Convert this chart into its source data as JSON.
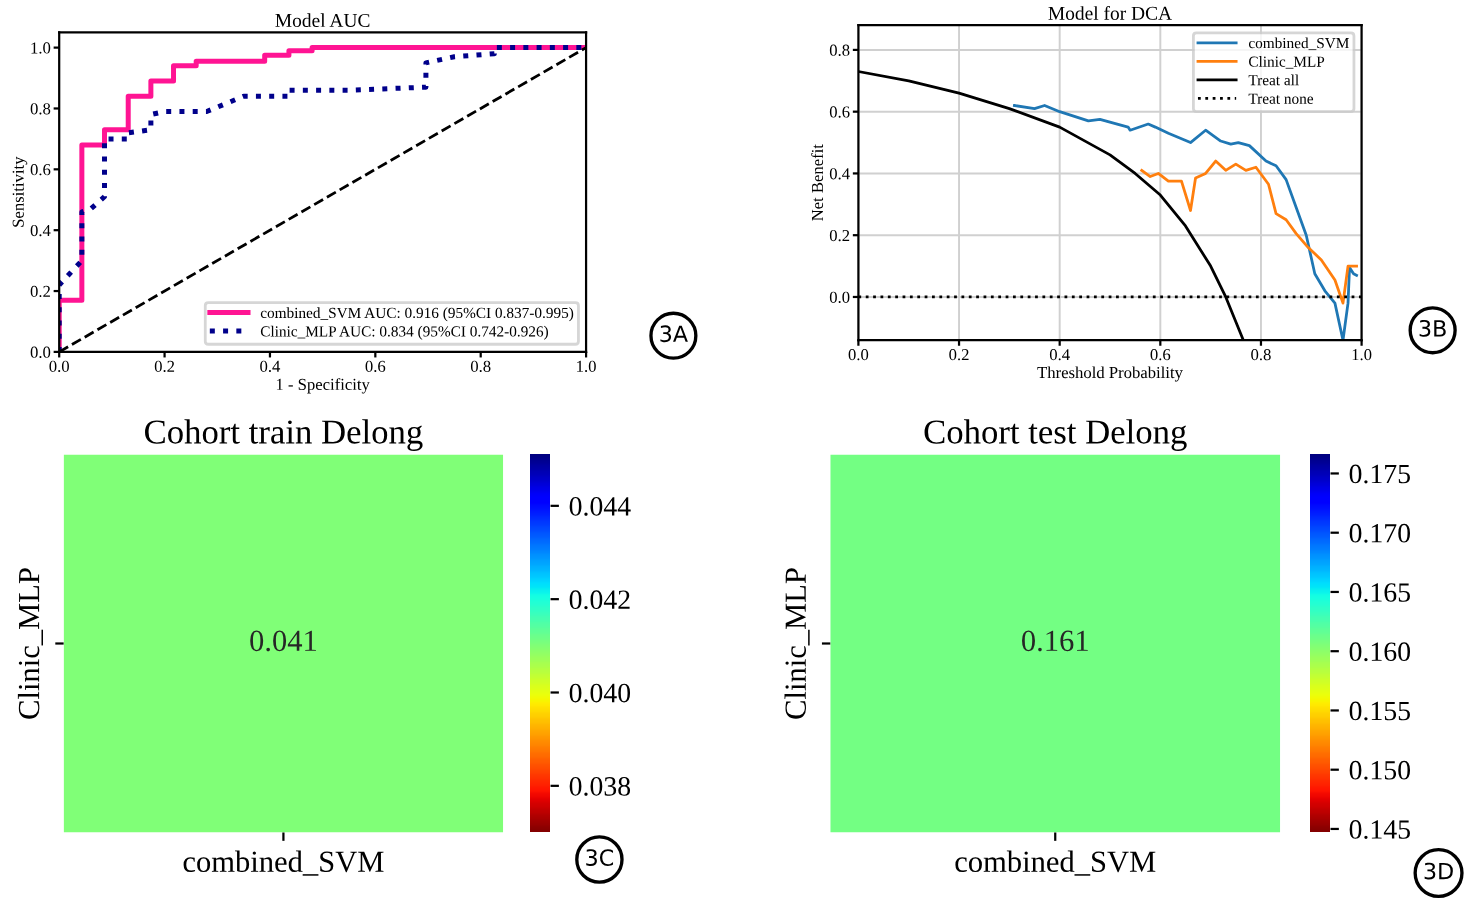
{
  "chart_data": [
    {
      "type": "line",
      "title": "Model AUC",
      "xlabel": "1 - Specificity",
      "ylabel": "Sensitivity",
      "xlim": [
        0,
        1
      ],
      "ylim": [
        0,
        1.05
      ],
      "xticks": [
        {
          "value": 0,
          "label": "0.0"
        },
        {
          "value": 0.2,
          "label": "0.2"
        },
        {
          "value": 0.4,
          "label": "0.4"
        },
        {
          "value": 0.6,
          "label": "0.6"
        },
        {
          "value": 0.8,
          "label": "0.8"
        },
        {
          "value": 1,
          "label": "1.0"
        }
      ],
      "yticks": [
        {
          "value": 0,
          "label": "0.0"
        },
        {
          "value": 0.2,
          "label": "0.2"
        },
        {
          "value": 0.4,
          "label": "0.4"
        },
        {
          "value": 0.6,
          "label": "0.6"
        },
        {
          "value": 0.8,
          "label": "0.8"
        },
        {
          "value": 1,
          "label": "1.0"
        }
      ],
      "legend": "bottom right",
      "grid": false,
      "annotations": [
        "3A"
      ],
      "series": [
        {
          "name": "combined_SVM AUC: 0.916 (95%CI 0.837-0.995)",
          "color": "#ff1493",
          "line_style": "solid",
          "x": [
            0,
            0,
            0.043,
            0.043,
            0.086,
            0.086,
            0.131,
            0.131,
            0.174,
            0.174,
            0.217,
            0.217,
            0.26,
            0.26,
            0.39,
            0.39,
            0.436,
            0.436,
            0.48,
            0.48,
            1
          ],
          "values": [
            0,
            0.17,
            0.17,
            0.68,
            0.68,
            0.73,
            0.73,
            0.84,
            0.84,
            0.89,
            0.89,
            0.94,
            0.94,
            0.955,
            0.955,
            0.975,
            0.975,
            0.99,
            0.99,
            1,
            1
          ]
        },
        {
          "name": "Clinic_MLP AUC: 0.834 (95%CI 0.742-0.926)",
          "color": "#00008b",
          "line_style": "dotted",
          "x": [
            0,
            0,
            0.043,
            0.043,
            0.06,
            0.086,
            0.086,
            0.131,
            0.131,
            0.174,
            0.174,
            0.2,
            0.28,
            0.35,
            0.436,
            0.436,
            0.55,
            0.696,
            0.696,
            0.75,
            0.826,
            0.826,
            1
          ],
          "values": [
            0,
            0.22,
            0.3,
            0.46,
            0.47,
            0.51,
            0.7,
            0.7,
            0.72,
            0.73,
            0.78,
            0.79,
            0.79,
            0.84,
            0.84,
            0.86,
            0.86,
            0.87,
            0.95,
            0.97,
            0.98,
            1,
            1
          ]
        },
        {
          "color": "#000000",
          "line_style": "dashed",
          "x": [
            0,
            1
          ],
          "values": [
            0,
            1
          ]
        }
      ]
    },
    {
      "type": "line",
      "title": "Model for DCA",
      "xlabel": "Threshold Probability",
      "ylabel": "Net Benefit",
      "xlim": [
        0,
        1
      ],
      "ylim": [
        -0.14,
        0.88
      ],
      "xticks": [
        {
          "value": 0,
          "label": "0.0"
        },
        {
          "value": 0.2,
          "label": "0.2"
        },
        {
          "value": 0.4,
          "label": "0.4"
        },
        {
          "value": 0.6,
          "label": "0.6"
        },
        {
          "value": 0.8,
          "label": "0.8"
        },
        {
          "value": 1,
          "label": "1.0"
        }
      ],
      "yticks": [
        {
          "value": 0,
          "label": "0.0"
        },
        {
          "value": 0.2,
          "label": "0.2"
        },
        {
          "value": 0.4,
          "label": "0.4"
        },
        {
          "value": 0.6,
          "label": "0.6"
        },
        {
          "value": 0.8,
          "label": "0.8"
        }
      ],
      "legend": "top right",
      "grid": true,
      "annotations": [
        "3B"
      ],
      "series": [
        {
          "name": "combined_SVM",
          "color": "#1f77b4",
          "line_style": "solid",
          "x": [
            0.31,
            0.35,
            0.37,
            0.4,
            0.457,
            0.48,
            0.536,
            0.54,
            0.576,
            0.59,
            0.616,
            0.66,
            0.69,
            0.72,
            0.74,
            0.755,
            0.777,
            0.81,
            0.83,
            0.85,
            0.87,
            0.89,
            0.907,
            0.927,
            0.947,
            0.963,
            0.973,
            0.976,
            0.984,
            0.99
          ],
          "values": [
            0.62,
            0.61,
            0.62,
            0.6,
            0.57,
            0.575,
            0.55,
            0.54,
            0.56,
            0.55,
            0.53,
            0.5,
            0.54,
            0.505,
            0.495,
            0.5,
            0.49,
            0.44,
            0.425,
            0.38,
            0.29,
            0.2,
            0.075,
            0.02,
            -0.02,
            -0.14,
            -0.02,
            0.095,
            0.075,
            0.07
          ]
        },
        {
          "name": "Clinic_MLP",
          "color": "#ff7f0e",
          "line_style": "solid",
          "x": [
            0.563,
            0.58,
            0.596,
            0.616,
            0.642,
            0.66,
            0.67,
            0.69,
            0.71,
            0.73,
            0.75,
            0.77,
            0.79,
            0.815,
            0.83,
            0.85,
            0.87,
            0.894,
            0.92,
            0.947,
            0.963,
            0.973,
            0.99
          ],
          "values": [
            0.41,
            0.39,
            0.4,
            0.375,
            0.375,
            0.28,
            0.385,
            0.4,
            0.44,
            0.41,
            0.43,
            0.41,
            0.42,
            0.365,
            0.27,
            0.25,
            0.205,
            0.16,
            0.12,
            0.055,
            -0.02,
            0.1,
            0.1
          ]
        },
        {
          "name": "Treat all",
          "color": "#000000",
          "line_style": "solid",
          "x": [
            0,
            0.1,
            0.2,
            0.3,
            0.4,
            0.5,
            0.55,
            0.6,
            0.65,
            0.7,
            0.73,
            0.765
          ],
          "values": [
            0.73,
            0.7,
            0.66,
            0.61,
            0.55,
            0.46,
            0.4,
            0.33,
            0.23,
            0.1,
            0,
            -0.14
          ]
        },
        {
          "name": "Treat none",
          "color": "#000000",
          "line_style": "dotted",
          "x": [
            0,
            1
          ],
          "values": [
            0,
            0
          ]
        }
      ]
    },
    {
      "type": "heatmap",
      "title": "Cohort train Delong",
      "categories": [
        "combined_SVM"
      ],
      "y_categories": [
        "Clinic_MLP"
      ],
      "cells": [
        [
          0.041
        ]
      ],
      "data_labels": true,
      "clim": [
        0.037,
        0.0451
      ],
      "cticks": [
        0.038,
        {
          "value": 0.04,
          "label": "0.040"
        },
        0.042,
        0.044
      ],
      "annotations": [
        "3C"
      ]
    },
    {
      "type": "heatmap",
      "title": "Cohort test Delong",
      "categories": [
        "combined_SVM"
      ],
      "y_categories": [
        "Clinic_MLP"
      ],
      "cells": [
        [
          0.161
        ]
      ],
      "data_labels": true,
      "clim": [
        0.1447,
        0.1766
      ],
      "cticks": [
        0.145,
        {
          "value": 0.15,
          "label": "0.150"
        },
        0.155,
        {
          "value": 0.16,
          "label": "0.160"
        },
        0.165,
        {
          "value": 0.17,
          "label": "0.170"
        },
        0.175
      ],
      "annotations": [
        "3D"
      ]
    }
  ]
}
